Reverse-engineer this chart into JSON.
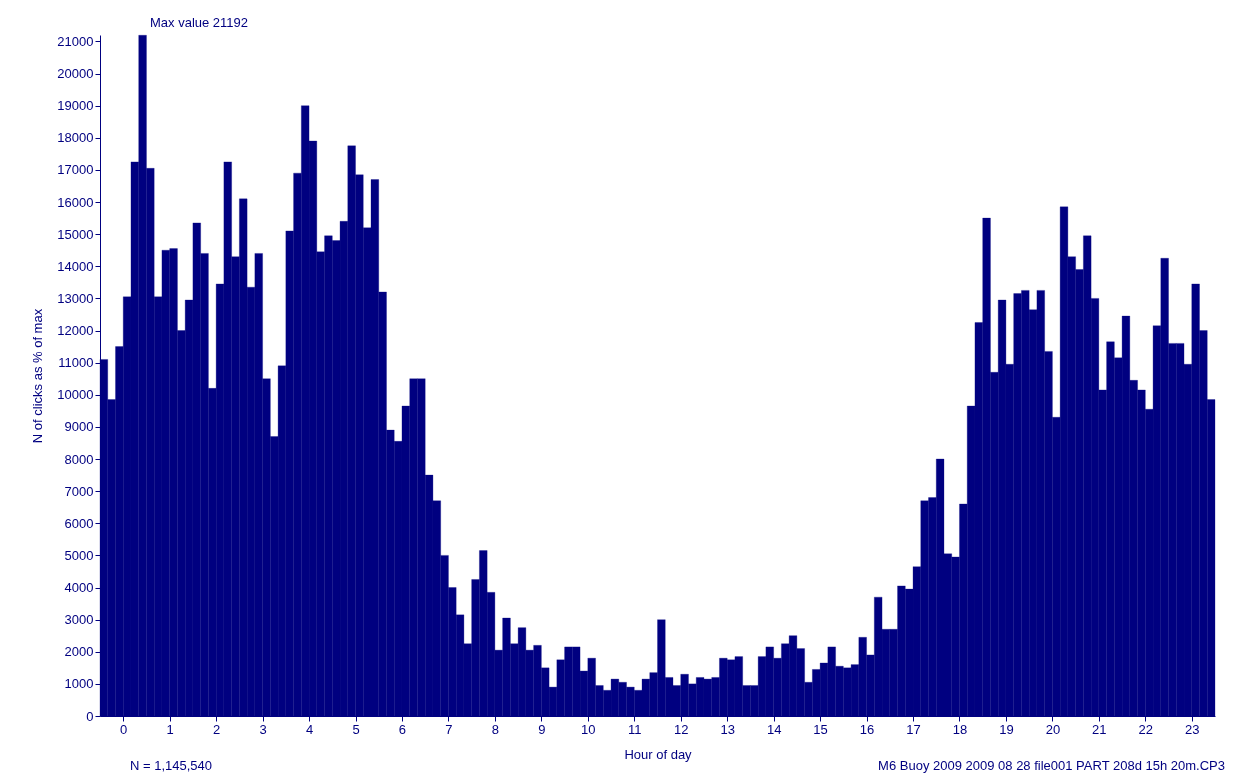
{
  "chart_data": {
    "type": "histogram",
    "xlabel": "Hour of day",
    "ylabel": "N of clicks as % of max",
    "annotations": [
      "Max value 21192",
      "N = 1,145,540",
      "M6 Buoy 2009 2009 08 28 file001 PART 208d 15h 20m.CP3"
    ],
    "color": "#000080",
    "bins": [
      -0.5,
      -0.3333,
      -0.1667,
      0,
      0.1667,
      0.3333,
      0.5,
      0.6667,
      0.8333,
      1,
      1.1667,
      1.3333,
      1.5,
      1.6667,
      1.8333,
      2,
      2.1667,
      2.3333,
      2.5,
      2.6667,
      2.8333,
      3,
      3.1667,
      3.3333,
      3.5,
      3.6667,
      3.8333,
      4,
      4.1667,
      4.3333,
      4.5,
      4.6667,
      4.8333,
      5,
      5.1667,
      5.3333,
      5.5,
      5.6667,
      5.8333,
      6,
      6.1667,
      6.3333,
      6.5,
      6.6667,
      6.8333,
      7,
      7.1667,
      7.3333,
      7.5,
      7.6667,
      7.8333,
      8,
      8.1667,
      8.3333,
      8.5,
      8.6667,
      8.8333,
      9,
      9.1667,
      9.3333,
      9.5,
      9.6667,
      9.8333,
      10,
      10.1667,
      10.3333,
      10.5,
      10.6667,
      10.8333,
      11,
      11.1667,
      11.3333,
      11.5,
      11.6667,
      11.8333,
      12,
      12.1667,
      12.3333,
      12.5,
      12.6667,
      12.8333,
      13,
      13.1667,
      13.3333,
      13.5,
      13.6667,
      13.8333,
      14,
      14.1667,
      14.3333,
      14.5,
      14.6667,
      14.8333,
      15,
      15.1667,
      15.3333,
      15.5,
      15.6667,
      15.8333,
      16,
      16.1667,
      16.3333,
      16.5,
      16.6667,
      16.8333,
      17,
      17.1667,
      17.3333,
      17.5,
      17.6667,
      17.8333,
      18,
      18.1667,
      18.3333,
      18.5,
      18.6667,
      18.8333,
      19,
      19.1667,
      19.3333,
      19.5,
      19.6667,
      19.8333,
      20,
      20.1667,
      20.3333,
      20.5,
      20.6667,
      20.8333,
      21,
      21.1667,
      21.3333,
      21.5,
      21.6667,
      21.8333,
      22,
      22.1667,
      22.3333,
      22.5,
      22.6667,
      22.8333,
      23,
      23.1667,
      23.3333,
      23.5
    ],
    "values": [
      11100,
      9850,
      11500,
      13050,
      17250,
      21192,
      17050,
      13050,
      14500,
      14550,
      12000,
      12950,
      15350,
      14400,
      10200,
      13450,
      17250,
      14300,
      16100,
      13350,
      14400,
      10500,
      8700,
      10900,
      15100,
      16900,
      19000,
      17900,
      14450,
      14950,
      14800,
      15400,
      17750,
      16850,
      15200,
      16700,
      13200,
      8900,
      8550,
      9650,
      10500,
      10500,
      7500,
      6700,
      5000,
      4000,
      3150,
      2250,
      4250,
      5150,
      3850,
      2050,
      3050,
      2250,
      2750,
      2050,
      2200,
      1500,
      900,
      1750,
      2150,
      2150,
      1400,
      1800,
      950,
      800,
      1150,
      1050,
      900,
      800,
      1150,
      1350,
      3000,
      1200,
      950,
      1300,
      1000,
      1200,
      1150,
      1200,
      1800,
      1750,
      1850,
      950,
      950,
      1850,
      2150,
      1800,
      2250,
      2500,
      2100,
      1050,
      1450,
      1650,
      2150,
      1550,
      1500,
      1600,
      2450,
      1900,
      3700,
      2700,
      2700,
      4050,
      3950,
      4650,
      6700,
      6800,
      8000,
      5050,
      4950,
      6600,
      9650,
      12250,
      15500,
      10700,
      12950,
      10950,
      13150,
      13250,
      12650,
      13250,
      11350,
      9300,
      15850,
      14300,
      13900,
      14950,
      13000,
      10150,
      11650,
      11150,
      12450,
      10450,
      10150,
      9550,
      12150,
      14250,
      11600,
      11600,
      10950,
      13450,
      12000,
      9850
    ],
    "xlim": [
      -0.5,
      23.5
    ],
    "xticks": [
      0,
      1,
      2,
      3,
      4,
      5,
      6,
      7,
      8,
      9,
      10,
      11,
      12,
      13,
      14,
      15,
      16,
      17,
      18,
      19,
      20,
      21,
      22,
      23
    ],
    "ylim": [
      0,
      21200
    ],
    "yticks": [
      0,
      1000,
      2000,
      3000,
      4000,
      5000,
      6000,
      7000,
      8000,
      9000,
      10000,
      11000,
      12000,
      13000,
      14000,
      15000,
      16000,
      17000,
      18000,
      19000,
      20000,
      21000
    ],
    "grid": false
  }
}
